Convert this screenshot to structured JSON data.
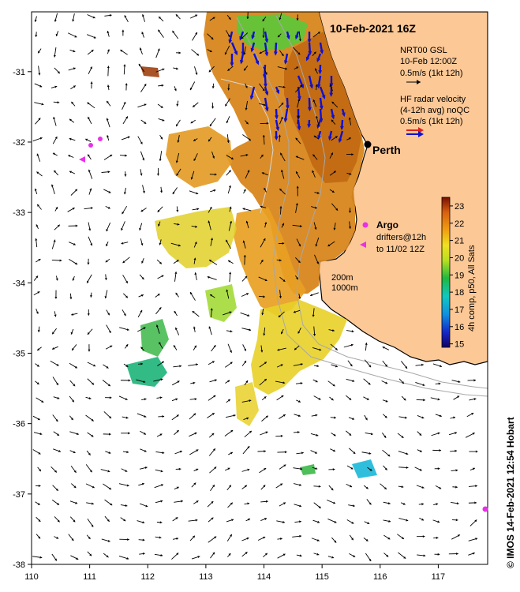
{
  "title": "10-Feb-2021 16Z",
  "legend": {
    "model_line1": "NRT00 GSL",
    "model_line2": "10-Feb 12:00Z",
    "model_scale": "0.5m/s (1kt 12h)",
    "radar_line1": "HF radar velocity",
    "radar_line2": "(4-12h avg) noQC",
    "radar_scale": "0.5m/s (1kt 12h)"
  },
  "place_label": "Perth",
  "argo_label": "Argo",
  "drifters_line1": "drifters@12h",
  "drifters_line2": "to 11/02 12Z",
  "isobath_200": "200m",
  "isobath_1000": "1000m",
  "colorbar": {
    "label": "4h comp, p50, All Sats",
    "ticks": [
      "15",
      "16",
      "17",
      "18",
      "19",
      "20",
      "21",
      "22",
      "23"
    ],
    "min": 14.8,
    "max": 23.5
  },
  "footer": "© IMOS 14-Feb-2021 12:54 Hobart",
  "chart_data": {
    "type": "map",
    "x_ticks": [
      "110",
      "111",
      "112",
      "113",
      "114",
      "115",
      "116",
      "117"
    ],
    "y_ticks": [
      "-31",
      "-32",
      "-33",
      "-34",
      "-35",
      "-36",
      "-37",
      "-38"
    ],
    "xlim": [
      110,
      117.85
    ],
    "ylim": [
      -38,
      -30.15
    ],
    "colors": {
      "land": "#fcc896",
      "radar_arrow": "#1010d0",
      "argo": "#e830e8",
      "coast": "#000000",
      "isobath": "#a8a8a8"
    }
  }
}
